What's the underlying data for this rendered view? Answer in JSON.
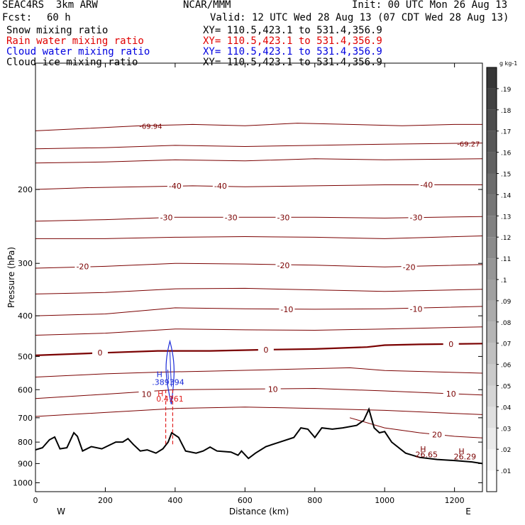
{
  "header": {
    "model": "SEAC4RS  3km ARW",
    "center": "NCAR/MMM",
    "init": "Init: 00 UTC Mon 26 Aug 13",
    "fcst_label": "Fcst:",
    "fcst_value": "60 h",
    "valid": "Valid: 12 UTC Wed 28 Aug 13 (07 CDT Wed 28 Aug 13)"
  },
  "fields": [
    {
      "name": "Snow mixing ratio",
      "xy": "XY= 110.5,423.1 to 531.4,356.9",
      "color": "#000000"
    },
    {
      "name": "Rain water mixing ratio",
      "xy": "XY= 110.5,423.1 to 531.4,356.9",
      "color": "#e00000"
    },
    {
      "name": "Cloud water mixing ratio",
      "xy": "XY= 110.5,423.1 to 531.4,356.9",
      "color": "#0000e0"
    },
    {
      "name": "Cloud ice mixing ratio",
      "xy": "XY= 110.5,423.1 to 531.4,356.9",
      "color": "#000000"
    }
  ],
  "chart_data": {
    "type": "cross-section",
    "xlabel": "Distance (km)",
    "ylabel": "Pressure (hPa)",
    "xlim": [
      0,
      1280
    ],
    "ylim": [
      100,
      1050
    ],
    "y_scale": "log",
    "x_ticks": [
      "0",
      "200",
      "400",
      "600",
      "800",
      "1000",
      "1200"
    ],
    "y_ticks": [
      "200",
      "300",
      "400",
      "500",
      "600",
      "700",
      "800",
      "900",
      "1000"
    ],
    "endpoints": {
      "left": "W",
      "right": "E"
    },
    "colorbar": {
      "unit": "g kg-1",
      "ticks": [
        ".01",
        ".02",
        ".03",
        ".04",
        ".05",
        ".06",
        ".07",
        ".08",
        ".09",
        ".1",
        ".11",
        ".12",
        ".13",
        ".14",
        ".15",
        ".16",
        ".17",
        ".18",
        ".19"
      ]
    },
    "colors": {
      "isotherm": "#7a0000",
      "terrain": "#000000",
      "cloud_water": "#1a2ad8",
      "rain": "#e02020"
    },
    "isotherms": [
      {
        "label": "-69.94",
        "points": [
          [
            0,
            145
          ],
          [
            150,
            143
          ],
          [
            300,
            141
          ],
          [
            450,
            140
          ],
          [
            600,
            141
          ],
          [
            750,
            139
          ],
          [
            900,
            140
          ],
          [
            1050,
            141
          ],
          [
            1200,
            140
          ],
          [
            1280,
            140
          ]
        ]
      },
      {
        "label": "-69.27",
        "points": [
          [
            0,
            160
          ],
          [
            200,
            159
          ],
          [
            400,
            157
          ],
          [
            600,
            158
          ],
          [
            800,
            157
          ],
          [
            1000,
            156
          ],
          [
            1280,
            155
          ]
        ]
      },
      {
        "label": "",
        "points": [
          [
            0,
            173
          ],
          [
            200,
            172
          ],
          [
            400,
            170
          ],
          [
            600,
            171
          ],
          [
            800,
            169
          ],
          [
            1000,
            170
          ],
          [
            1280,
            169
          ]
        ]
      },
      {
        "label": "-40",
        "points": [
          [
            0,
            200
          ],
          [
            150,
            198
          ],
          [
            300,
            197
          ],
          [
            450,
            196
          ],
          [
            600,
            197
          ],
          [
            800,
            196
          ],
          [
            1000,
            195
          ],
          [
            1280,
            195
          ]
        ],
        "labels_at": [
          [
            400,
            196
          ],
          [
            530,
            196
          ],
          [
            1120,
            195
          ]
        ]
      },
      {
        "label": "-30",
        "points": [
          [
            0,
            238
          ],
          [
            200,
            236
          ],
          [
            400,
            233
          ],
          [
            600,
            233
          ],
          [
            800,
            233
          ],
          [
            1000,
            234
          ],
          [
            1280,
            232
          ]
        ],
        "labels_at": [
          [
            375,
            233
          ],
          [
            560,
            233
          ],
          [
            710,
            233
          ],
          [
            1090,
            233
          ]
        ]
      },
      {
        "label": "",
        "points": [
          [
            0,
            262
          ],
          [
            200,
            262
          ],
          [
            400,
            260
          ],
          [
            600,
            259
          ],
          [
            800,
            260
          ],
          [
            1000,
            262
          ],
          [
            1280,
            258
          ]
        ]
      },
      {
        "label": "-20",
        "points": [
          [
            0,
            308
          ],
          [
            200,
            305
          ],
          [
            400,
            300
          ],
          [
            600,
            301
          ],
          [
            800,
            303
          ],
          [
            1000,
            306
          ],
          [
            1280,
            302
          ]
        ],
        "labels_at": [
          [
            135,
            305
          ],
          [
            710,
            303
          ],
          [
            1070,
            306
          ]
        ]
      },
      {
        "label": "",
        "points": [
          [
            0,
            355
          ],
          [
            200,
            352
          ],
          [
            400,
            345
          ],
          [
            600,
            344
          ],
          [
            800,
            347
          ],
          [
            1000,
            350
          ],
          [
            1280,
            346
          ]
        ]
      },
      {
        "label": "-10",
        "points": [
          [
            0,
            400
          ],
          [
            200,
            396
          ],
          [
            400,
            383
          ],
          [
            600,
            385
          ],
          [
            800,
            386
          ],
          [
            1000,
            385
          ],
          [
            1280,
            380
          ]
        ],
        "labels_at": [
          [
            720,
            386
          ],
          [
            1090,
            385
          ]
        ]
      },
      {
        "label": "",
        "points": [
          [
            0,
            445
          ],
          [
            200,
            440
          ],
          [
            400,
            430
          ],
          [
            600,
            432
          ],
          [
            800,
            433
          ],
          [
            1000,
            430
          ],
          [
            1280,
            425
          ]
        ]
      },
      {
        "label": "0",
        "points": [
          [
            0,
            497
          ],
          [
            200,
            490
          ],
          [
            350,
            485
          ],
          [
            500,
            485
          ],
          [
            650,
            482
          ],
          [
            800,
            480
          ],
          [
            950,
            475
          ],
          [
            1000,
            470
          ],
          [
            1100,
            468
          ],
          [
            1280,
            466
          ]
        ],
        "labels_at": [
          [
            185,
            490
          ],
          [
            660,
            482
          ],
          [
            1190,
            467
          ]
        ],
        "bold": true
      },
      {
        "label": "",
        "points": [
          [
            0,
            560
          ],
          [
            200,
            550
          ],
          [
            350,
            545
          ],
          [
            500,
            542
          ],
          [
            700,
            537
          ],
          [
            900,
            532
          ],
          [
            1000,
            540
          ],
          [
            1280,
            548
          ]
        ]
      },
      {
        "label": "10",
        "points": [
          [
            0,
            630
          ],
          [
            200,
            615
          ],
          [
            400,
            600
          ],
          [
            600,
            598
          ],
          [
            800,
            596
          ],
          [
            1000,
            604
          ],
          [
            1280,
            618
          ]
        ],
        "labels_at": [
          [
            318,
            615
          ],
          [
            680,
            598
          ],
          [
            1190,
            614
          ]
        ]
      },
      {
        "label": "",
        "points": [
          [
            0,
            695
          ],
          [
            200,
            680
          ],
          [
            400,
            665
          ],
          [
            600,
            660
          ],
          [
            800,
            665
          ],
          [
            1000,
            672
          ],
          [
            1280,
            688
          ]
        ]
      },
      {
        "label": "20",
        "points": [
          [
            900,
            700
          ],
          [
            1000,
            740
          ],
          [
            1100,
            760
          ],
          [
            1200,
            775
          ],
          [
            1280,
            782
          ]
        ],
        "labels_at": [
          [
            1150,
            768
          ]
        ]
      }
    ],
    "terrain": {
      "points": [
        [
          0,
          835
        ],
        [
          20,
          825
        ],
        [
          40,
          790
        ],
        [
          55,
          778
        ],
        [
          70,
          830
        ],
        [
          90,
          825
        ],
        [
          110,
          760
        ],
        [
          120,
          775
        ],
        [
          135,
          840
        ],
        [
          160,
          820
        ],
        [
          190,
          830
        ],
        [
          230,
          800
        ],
        [
          250,
          800
        ],
        [
          265,
          785
        ],
        [
          280,
          810
        ],
        [
          300,
          840
        ],
        [
          320,
          835
        ],
        [
          345,
          850
        ],
        [
          365,
          830
        ],
        [
          380,
          800
        ],
        [
          390,
          760
        ],
        [
          410,
          780
        ],
        [
          430,
          840
        ],
        [
          460,
          850
        ],
        [
          480,
          840
        ],
        [
          500,
          822
        ],
        [
          520,
          840
        ],
        [
          560,
          845
        ],
        [
          580,
          860
        ],
        [
          590,
          840
        ],
        [
          610,
          875
        ],
        [
          630,
          850
        ],
        [
          660,
          820
        ],
        [
          700,
          800
        ],
        [
          740,
          780
        ],
        [
          760,
          740
        ],
        [
          780,
          745
        ],
        [
          800,
          780
        ],
        [
          820,
          740
        ],
        [
          850,
          745
        ],
        [
          880,
          740
        ],
        [
          920,
          730
        ],
        [
          940,
          710
        ],
        [
          955,
          668
        ],
        [
          970,
          740
        ],
        [
          985,
          760
        ],
        [
          1000,
          755
        ],
        [
          1020,
          800
        ],
        [
          1060,
          850
        ],
        [
          1100,
          870
        ],
        [
          1150,
          880
        ],
        [
          1200,
          885
        ],
        [
          1250,
          892
        ],
        [
          1280,
          900
        ]
      ]
    },
    "annotations": [
      {
        "text": "H",
        "x": 355,
        "y": 560,
        "color": "#1a2ad8"
      },
      {
        "text": ".389394",
        "x": 380,
        "y": 585,
        "color": "#1a2ad8"
      },
      {
        "text": "H",
        "x": 358,
        "y": 622,
        "color": "#e02020"
      },
      {
        "text": "0.4161",
        "x": 385,
        "y": 640,
        "color": "#e02020"
      },
      {
        "text": "H",
        "x": 1110,
        "y": 845,
        "color": "#7a0000"
      },
      {
        "text": "26.65",
        "x": 1120,
        "y": 870,
        "color": "#7a0000"
      },
      {
        "text": "H",
        "x": 1220,
        "y": 855,
        "color": "#7a0000"
      },
      {
        "text": "26.29",
        "x": 1230,
        "y": 880,
        "color": "#7a0000"
      }
    ],
    "cloud_water": {
      "x": 385,
      "p_top": 460,
      "p_bottom": 650
    },
    "rain_lines": [
      {
        "x": 373
      },
      {
        "x": 393
      }
    ]
  }
}
